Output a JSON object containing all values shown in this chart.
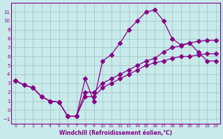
{
  "xlabel": "Windchill (Refroidissement éolien,°C)",
  "bg_color": "#c8eaea",
  "line_color": "#880088",
  "grid_color": "#aacccc",
  "xlim": [
    -0.5,
    23.5
  ],
  "ylim": [
    -1.5,
    12
  ],
  "xticks": [
    0,
    1,
    2,
    3,
    4,
    5,
    6,
    7,
    8,
    9,
    10,
    11,
    12,
    13,
    14,
    15,
    16,
    17,
    18,
    19,
    20,
    21,
    22,
    23
  ],
  "yticks": [
    -1,
    0,
    1,
    2,
    3,
    4,
    5,
    6,
    7,
    8,
    9,
    10,
    11
  ],
  "line1_x": [
    0,
    1,
    2,
    3,
    4,
    5,
    6,
    7,
    8,
    9,
    10,
    11,
    12,
    13,
    14,
    15,
    16,
    17,
    18,
    19,
    20,
    21,
    22,
    23
  ],
  "line1_y": [
    3.3,
    2.8,
    2.5,
    1.5,
    1.0,
    0.9,
    -0.7,
    -0.7,
    3.5,
    1.0,
    5.5,
    6.2,
    7.5,
    9.0,
    10.0,
    11.0,
    11.2,
    10.0,
    8.0,
    7.3,
    7.5,
    6.5,
    5.5,
    5.5
  ],
  "line2_x": [
    0,
    1,
    2,
    3,
    4,
    5,
    6,
    7,
    8,
    9,
    10,
    11,
    12,
    13,
    14,
    15,
    16,
    17,
    18,
    19,
    20,
    21,
    22,
    23
  ],
  "line2_y": [
    3.3,
    2.8,
    2.5,
    1.5,
    1.0,
    0.9,
    -0.7,
    -0.7,
    2.0,
    2.0,
    3.0,
    3.5,
    4.0,
    4.5,
    5.0,
    5.5,
    5.8,
    6.5,
    7.0,
    7.2,
    7.5,
    7.7,
    7.8,
    7.8
  ],
  "line3_x": [
    0,
    1,
    2,
    3,
    4,
    5,
    6,
    7,
    8,
    9,
    10,
    11,
    12,
    13,
    14,
    15,
    16,
    17,
    18,
    19,
    20,
    21,
    22,
    23
  ],
  "line3_y": [
    3.3,
    2.8,
    2.5,
    1.5,
    1.0,
    0.9,
    -0.7,
    -0.7,
    1.5,
    1.5,
    2.5,
    3.0,
    3.5,
    4.0,
    4.5,
    5.0,
    5.3,
    5.5,
    5.8,
    6.0,
    6.0,
    6.2,
    6.3,
    6.3
  ],
  "marker": "D",
  "markersize": 3
}
